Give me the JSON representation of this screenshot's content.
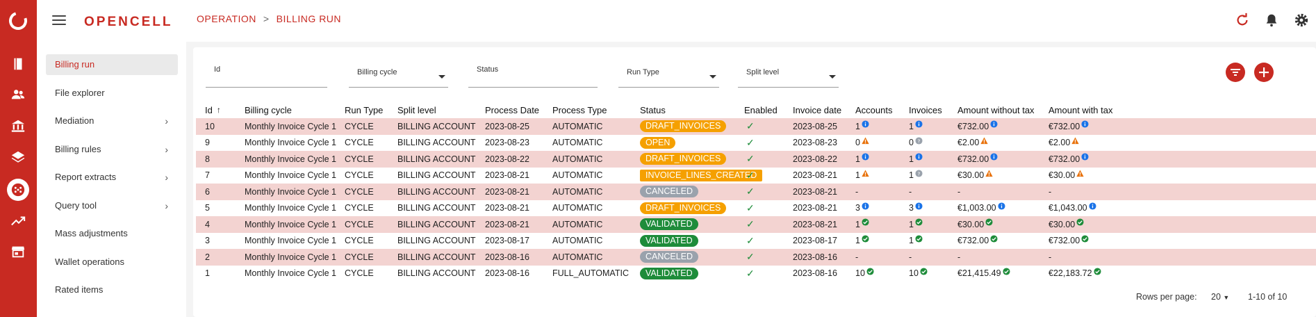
{
  "brand": "OPENCELL",
  "breadcrumb": {
    "root": "OPERATION",
    "separator": ">",
    "current": "BILLING RUN"
  },
  "nav": [
    {
      "label": "Billing run",
      "active": true,
      "chevron": false
    },
    {
      "label": "File explorer",
      "active": false,
      "chevron": false
    },
    {
      "label": "Mediation",
      "active": false,
      "chevron": true
    },
    {
      "label": "Billing rules",
      "active": false,
      "chevron": true
    },
    {
      "label": "Report extracts",
      "active": false,
      "chevron": true
    },
    {
      "label": "Query tool",
      "active": false,
      "chevron": true
    },
    {
      "label": "Mass adjustments",
      "active": false,
      "chevron": false
    },
    {
      "label": "Wallet operations",
      "active": false,
      "chevron": false
    },
    {
      "label": "Rated items",
      "active": false,
      "chevron": false
    }
  ],
  "filters": {
    "id": "Id",
    "billing_cycle": "Billing cycle",
    "status": "Status",
    "run_type": "Run Type",
    "split_level": "Split level"
  },
  "columns": {
    "id": "Id",
    "billing_cycle": "Billing cycle",
    "run_type": "Run Type",
    "split_level": "Split level",
    "process_date": "Process Date",
    "process_type": "Process Type",
    "status": "Status",
    "enabled": "Enabled",
    "invoice_date": "Invoice date",
    "accounts": "Accounts",
    "invoices": "Invoices",
    "amount_wo_tax": "Amount without tax",
    "amount_w_tax": "Amount with tax"
  },
  "rows": [
    {
      "id": "10",
      "cycle": "Monthly Invoice Cycle 1",
      "run_type": "CYCLE",
      "split": "BILLING ACCOUNT",
      "process_date": "2023-08-25",
      "process_type": "AUTOMATIC",
      "status": "DRAFT_INVOICES",
      "status_color": "orange",
      "enabled": "✓",
      "invoice_date": "2023-08-25",
      "accounts": "1",
      "acc_icon": "info",
      "invoices": "1",
      "inv_icon": "info",
      "amount_wo": "€732.00",
      "wo_icon": "info",
      "amount_w": "€732.00",
      "w_icon": "info"
    },
    {
      "id": "9",
      "cycle": "Monthly Invoice Cycle 1",
      "run_type": "CYCLE",
      "split": "BILLING ACCOUNT",
      "process_date": "2023-08-23",
      "process_type": "AUTOMATIC",
      "status": "OPEN",
      "status_color": "orange",
      "enabled": "✓",
      "invoice_date": "2023-08-23",
      "accounts": "0",
      "acc_icon": "warn",
      "invoices": "0",
      "inv_icon": "help",
      "amount_wo": "€2.00",
      "wo_icon": "warn",
      "amount_w": "€2.00",
      "w_icon": "warn"
    },
    {
      "id": "8",
      "cycle": "Monthly Invoice Cycle 1",
      "run_type": "CYCLE",
      "split": "BILLING ACCOUNT",
      "process_date": "2023-08-22",
      "process_type": "AUTOMATIC",
      "status": "DRAFT_INVOICES",
      "status_color": "orange",
      "enabled": "✓",
      "invoice_date": "2023-08-22",
      "accounts": "1",
      "acc_icon": "info",
      "invoices": "1",
      "inv_icon": "info",
      "amount_wo": "€732.00",
      "wo_icon": "info",
      "amount_w": "€732.00",
      "w_icon": "info"
    },
    {
      "id": "7",
      "cycle": "Monthly Invoice Cycle 1",
      "run_type": "CYCLE",
      "split": "BILLING ACCOUNT",
      "process_date": "2023-08-21",
      "process_type": "AUTOMATIC",
      "status": "INVOICE_LINES_CREATED",
      "status_color": "orange-box",
      "enabled": "✓",
      "invoice_date": "2023-08-21",
      "accounts": "1",
      "acc_icon": "warn",
      "invoices": "1",
      "inv_icon": "help",
      "amount_wo": "€30.00",
      "wo_icon": "warn",
      "amount_w": "€30.00",
      "w_icon": "warn"
    },
    {
      "id": "6",
      "cycle": "Monthly Invoice Cycle 1",
      "run_type": "CYCLE",
      "split": "BILLING ACCOUNT",
      "process_date": "2023-08-21",
      "process_type": "AUTOMATIC",
      "status": "CANCELED",
      "status_color": "grey",
      "enabled": "✓",
      "invoice_date": "2023-08-21",
      "accounts": "-",
      "acc_icon": "",
      "invoices": "-",
      "inv_icon": "",
      "amount_wo": "-",
      "wo_icon": "",
      "amount_w": "-",
      "w_icon": ""
    },
    {
      "id": "5",
      "cycle": "Monthly Invoice Cycle 1",
      "run_type": "CYCLE",
      "split": "BILLING ACCOUNT",
      "process_date": "2023-08-21",
      "process_type": "AUTOMATIC",
      "status": "DRAFT_INVOICES",
      "status_color": "orange",
      "enabled": "✓",
      "invoice_date": "2023-08-21",
      "accounts": "3",
      "acc_icon": "info",
      "invoices": "3",
      "inv_icon": "info",
      "amount_wo": "€1,003.00",
      "wo_icon": "info",
      "amount_w": "€1,043.00",
      "w_icon": "info"
    },
    {
      "id": "4",
      "cycle": "Monthly Invoice Cycle 1",
      "run_type": "CYCLE",
      "split": "BILLING ACCOUNT",
      "process_date": "2023-08-21",
      "process_type": "AUTOMATIC",
      "status": "VALIDATED",
      "status_color": "green",
      "enabled": "✓",
      "invoice_date": "2023-08-21",
      "accounts": "1",
      "acc_icon": "ok",
      "invoices": "1",
      "inv_icon": "ok",
      "amount_wo": "€30.00",
      "wo_icon": "ok",
      "amount_w": "€30.00",
      "w_icon": "ok"
    },
    {
      "id": "3",
      "cycle": "Monthly Invoice Cycle 1",
      "run_type": "CYCLE",
      "split": "BILLING ACCOUNT",
      "process_date": "2023-08-17",
      "process_type": "AUTOMATIC",
      "status": "VALIDATED",
      "status_color": "green",
      "enabled": "✓",
      "invoice_date": "2023-08-17",
      "accounts": "1",
      "acc_icon": "ok",
      "invoices": "1",
      "inv_icon": "ok",
      "amount_wo": "€732.00",
      "wo_icon": "ok",
      "amount_w": "€732.00",
      "w_icon": "ok"
    },
    {
      "id": "2",
      "cycle": "Monthly Invoice Cycle 1",
      "run_type": "CYCLE",
      "split": "BILLING ACCOUNT",
      "process_date": "2023-08-16",
      "process_type": "AUTOMATIC",
      "status": "CANCELED",
      "status_color": "grey",
      "enabled": "✓",
      "invoice_date": "2023-08-16",
      "accounts": "-",
      "acc_icon": "",
      "invoices": "-",
      "inv_icon": "",
      "amount_wo": "-",
      "wo_icon": "",
      "amount_w": "-",
      "w_icon": ""
    },
    {
      "id": "1",
      "cycle": "Monthly Invoice Cycle 1",
      "run_type": "CYCLE",
      "split": "BILLING ACCOUNT",
      "process_date": "2023-08-16",
      "process_type": "FULL_AUTOMATIC",
      "status": "VALIDATED",
      "status_color": "green",
      "enabled": "✓",
      "invoice_date": "2023-08-16",
      "accounts": "10",
      "acc_icon": "ok",
      "invoices": "10",
      "inv_icon": "ok",
      "amount_wo": "€21,415.49",
      "wo_icon": "ok",
      "amount_w": "€22,183.72",
      "w_icon": "ok"
    }
  ],
  "pagination": {
    "rows_per_page_label": "Rows per page:",
    "rows_per_page": "20",
    "range": "1-10 of 10"
  },
  "colors": {
    "brand": "#c82a22",
    "row_highlight": "#f3d3d1",
    "orange": "#f5a000",
    "grey": "#9aa2ac",
    "green": "#1e8c3a",
    "info": "#1a73e8"
  }
}
